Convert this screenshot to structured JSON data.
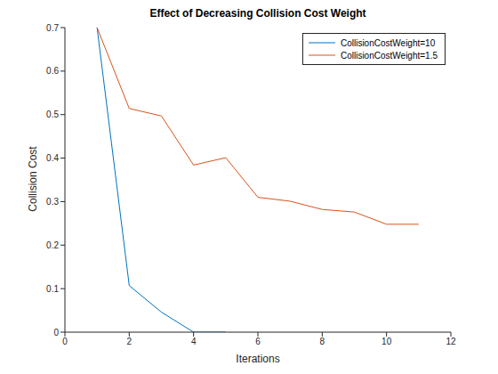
{
  "chart_data": {
    "type": "line",
    "title": "Effect of Decreasing Collision Cost Weight",
    "x_label": "Iterations",
    "y_label": "Collision Cost",
    "xlim": [
      0,
      12
    ],
    "xticks": [
      0,
      2,
      4,
      6,
      8,
      10,
      12
    ],
    "ylim": [
      0,
      0.7
    ],
    "yticks": [
      0,
      0.1,
      0.2,
      0.3,
      0.4,
      0.5,
      0.6,
      0.7
    ],
    "grid": false,
    "legend": "northeast",
    "series": [
      {
        "name": "CollisionCostWeight=10",
        "color": "#0072BD",
        "line_style": "solid",
        "x": [
          1,
          2,
          3,
          4,
          5
        ],
        "values": [
          0.7,
          0.107,
          0.046,
          0.0,
          0.0
        ]
      },
      {
        "name": "CollisionCostWeight=1.5",
        "color": "#D95319",
        "line_style": "solid",
        "x": [
          1,
          2,
          3,
          4,
          5,
          6,
          7,
          8,
          9,
          10,
          11
        ],
        "values": [
          0.7,
          0.514,
          0.497,
          0.384,
          0.401,
          0.31,
          0.301,
          0.282,
          0.276,
          0.248,
          0.248
        ]
      }
    ]
  }
}
